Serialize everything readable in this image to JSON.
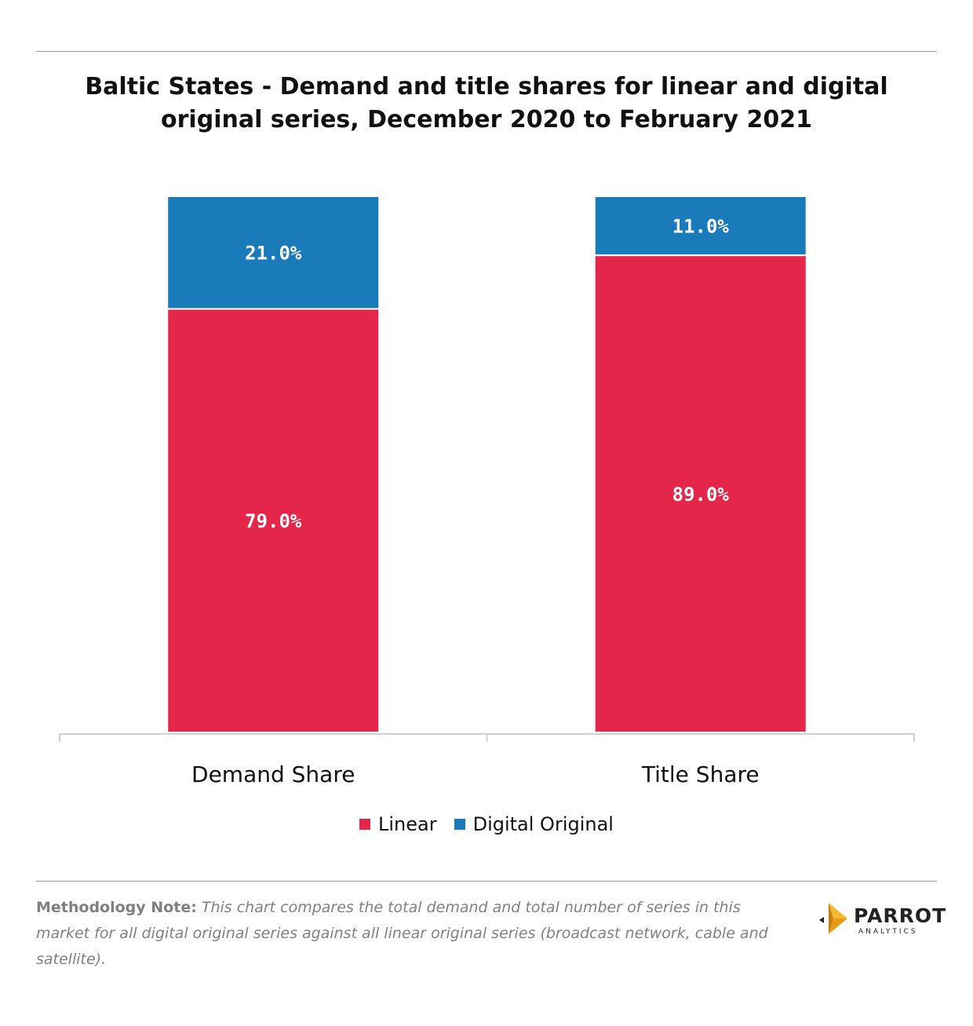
{
  "chart_data": {
    "type": "bar",
    "stacked": true,
    "title": "Baltic States - Demand and title shares for linear and digital original series, December 2020 to February 2021",
    "categories": [
      "Demand Share",
      "Title Share"
    ],
    "series": [
      {
        "name": "Linear",
        "color": "#e4264b",
        "values": [
          79.0,
          89.0
        ],
        "labels": [
          "79.0%",
          "89.0%"
        ]
      },
      {
        "name": "Digital Original",
        "color": "#1a7bba",
        "values": [
          21.0,
          11.0
        ],
        "labels": [
          "21.0%",
          "11.0%"
        ]
      }
    ],
    "ylim": [
      0,
      100
    ],
    "grid": false,
    "legend": "bottom-center"
  },
  "note": {
    "label": "Methodology Note:",
    "text": " This chart compares the total demand and total number of series in this market for all digital original series against all linear original series (broadcast network, cable and satellite)."
  },
  "brand": {
    "name": "PARROT",
    "sub": "ANALYTICS",
    "icon": "parrot-logo-icon"
  }
}
